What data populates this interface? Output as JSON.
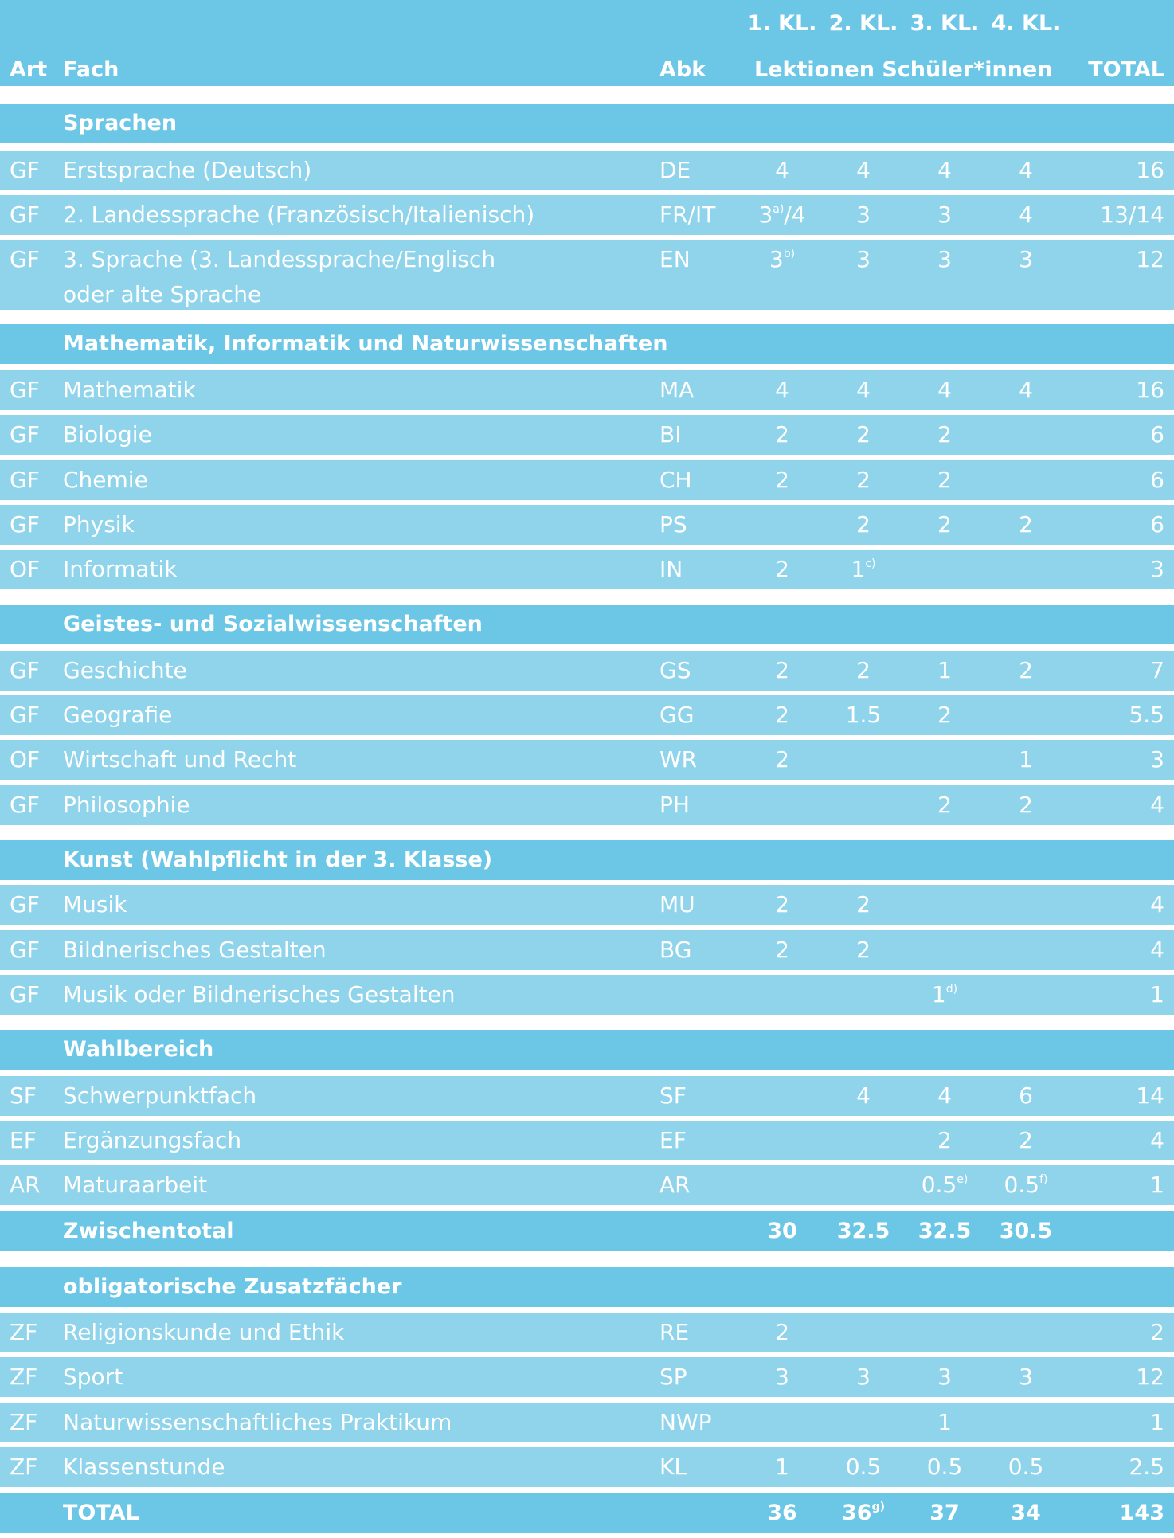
{
  "header": {
    "class_labels": [
      "1. KL.",
      "2. KL.",
      "3. KL.",
      "4. KL."
    ],
    "art": "Art",
    "fach": "Fach",
    "abk": "Abk",
    "lektionen": "Lektionen Schüler*innen",
    "total": "TOTAL"
  },
  "sections": {
    "sprachen": "Sprachen",
    "mint": "Mathematik, Informatik und Naturwissenschaften",
    "geistes": "Geistes- und Sozialwissenschaften",
    "kunst": "Kunst (Wahlpflicht in der 3. Klasse)",
    "wahl": "Wahlbereich",
    "zusatz": "obligatorische Zusatzfächer"
  },
  "rows": {
    "de": {
      "art": "GF",
      "fach": "Erstsprache (Deutsch)",
      "abk": "DE",
      "k1": "4",
      "k2": "4",
      "k3": "4",
      "k4": "4",
      "total": "16"
    },
    "fr": {
      "art": "GF",
      "fach": "2. Landessprache (Französisch/Italienisch)",
      "abk": "FR/IT",
      "k1_main": "3",
      "k1_sup": "a)",
      "k1_rest": "/4",
      "k2": "3",
      "k3": "3",
      "k4": "4",
      "total": "13/14"
    },
    "en": {
      "art": "GF",
      "fach_line1": "3. Sprache (3. Landessprache/Englisch",
      "fach_line2": "oder alte Sprache",
      "abk": "EN",
      "k1_main": "3",
      "k1_sup": "b)",
      "k2": "3",
      "k3": "3",
      "k4": "3",
      "total": "12"
    },
    "ma": {
      "art": "GF",
      "fach": "Mathematik",
      "abk": "MA",
      "k1": "4",
      "k2": "4",
      "k3": "4",
      "k4": "4",
      "total": "16"
    },
    "bi": {
      "art": "GF",
      "fach": "Biologie",
      "abk": "BI",
      "k1": "2",
      "k2": "2",
      "k3": "2",
      "k4": "",
      "total": "6"
    },
    "ch": {
      "art": "GF",
      "fach": "Chemie",
      "abk": "CH",
      "k1": "2",
      "k2": "2",
      "k3": "2",
      "k4": "",
      "total": "6"
    },
    "ps": {
      "art": "GF",
      "fach": "Physik",
      "abk": "PS",
      "k1": "",
      "k2": "2",
      "k3": "2",
      "k4": "2",
      "total": "6"
    },
    "in": {
      "art": "OF",
      "fach": "Informatik",
      "abk": "IN",
      "k1": "2",
      "k2_main": "1",
      "k2_sup": "c)",
      "k3": "",
      "k4": "",
      "total": "3"
    },
    "gs": {
      "art": "GF",
      "fach": "Geschichte",
      "abk": "GS",
      "k1": "2",
      "k2": "2",
      "k3": "1",
      "k4": "2",
      "total": "7"
    },
    "gg": {
      "art": "GF",
      "fach": "Geografie",
      "abk": "GG",
      "k1": "2",
      "k2": "1.5",
      "k3": "2",
      "k4": "",
      "total": "5.5"
    },
    "wr": {
      "art": "OF",
      "fach": "Wirtschaft und Recht",
      "abk": "WR",
      "k1": "2",
      "k2": "",
      "k3": "",
      "k4": "1",
      "total": "3"
    },
    "ph": {
      "art": "GF",
      "fach": "Philosophie",
      "abk": "PH",
      "k1": "",
      "k2": "",
      "k3": "2",
      "k4": "2",
      "total": "4"
    },
    "mu": {
      "art": "GF",
      "fach": "Musik",
      "abk": "MU",
      "k1": "2",
      "k2": "2",
      "k3": "",
      "k4": "",
      "total": "4"
    },
    "bg": {
      "art": "GF",
      "fach": "Bildnerisches Gestalten",
      "abk": "BG",
      "k1": "2",
      "k2": "2",
      "k3": "",
      "k4": "",
      "total": "4"
    },
    "mubg": {
      "art": "GF",
      "fach": "Musik oder Bildnerisches Gestalten",
      "abk": "",
      "k1": "",
      "k2": "",
      "k3_main": "1",
      "k3_sup": "d)",
      "k4": "",
      "total": "1"
    },
    "sf": {
      "art": "SF",
      "fach": "Schwerpunktfach",
      "abk": "SF",
      "k1": "",
      "k2": "4",
      "k3": "4",
      "k4": "6",
      "total": "14"
    },
    "ef": {
      "art": "EF",
      "fach": "Ergänzungsfach",
      "abk": "EF",
      "k1": "",
      "k2": "",
      "k3": "2",
      "k4": "2",
      "total": "4"
    },
    "ar": {
      "art": "AR",
      "fach": "Maturaarbeit",
      "abk": "AR",
      "k1": "",
      "k2": "",
      "k3_main": "0.5",
      "k3_sup": "e)",
      "k4_main": "0.5",
      "k4_sup": "f)",
      "total": "1"
    },
    "zwischen": {
      "fach": "Zwischentotal",
      "k1": "30",
      "k2": "32.5",
      "k3": "32.5",
      "k4": "30.5"
    },
    "re": {
      "art": "ZF",
      "fach": "Religionskunde und Ethik",
      "abk": "RE",
      "k1": "2",
      "k2": "",
      "k3": "",
      "k4": "",
      "total": "2"
    },
    "sp": {
      "art": "ZF",
      "fach": "Sport",
      "abk": "SP",
      "k1": "3",
      "k2": "3",
      "k3": "3",
      "k4": "3",
      "total": "12"
    },
    "nwp": {
      "art": "ZF",
      "fach": "Naturwissenschaftliches Praktikum",
      "abk": "NWP",
      "k1": "",
      "k2": "",
      "k3": "1",
      "k4": "",
      "total": "1"
    },
    "kl": {
      "art": "ZF",
      "fach": "Klassenstunde",
      "abk": "KL",
      "k1": "1",
      "k2": "0.5",
      "k3": "0.5",
      "k4": "0.5",
      "total": "2.5"
    },
    "total": {
      "fach": "TOTAL",
      "k1": "36",
      "k2_main": "36",
      "k2_sup": "g)",
      "k3": "37",
      "k4": "34",
      "total": "143"
    }
  },
  "colors": {
    "light_row": "#8fd4eb",
    "dark_row": "#6cc6e6",
    "text": "#ffffff"
  }
}
